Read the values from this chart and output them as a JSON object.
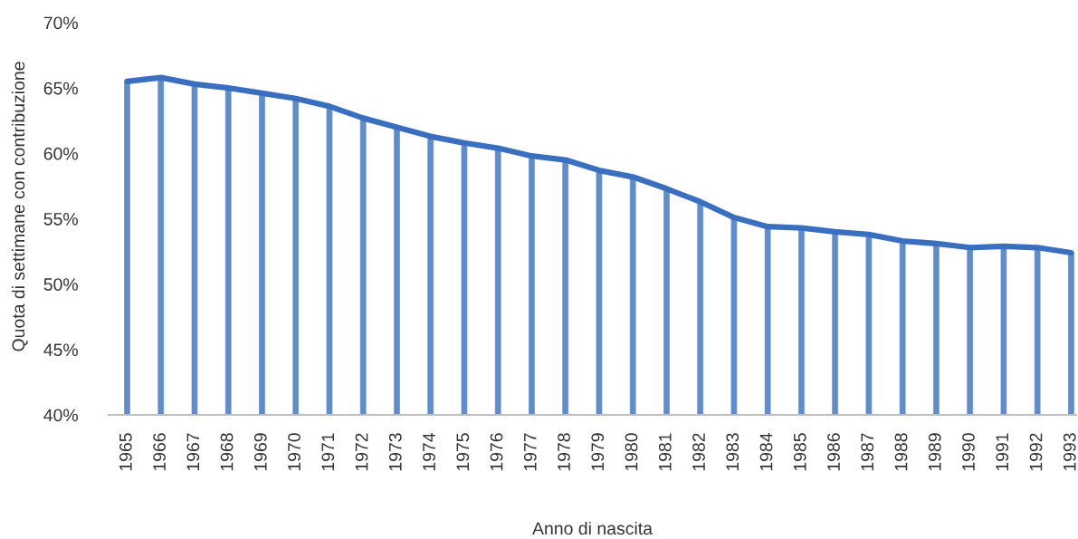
{
  "chart_data": {
    "type": "line",
    "xlabel": "Anno di nascita",
    "ylabel": "Quota di settimane con contribuzione",
    "categories": [
      "1965",
      "1966",
      "1967",
      "1968",
      "1969",
      "1970",
      "1971",
      "1972",
      "1973",
      "1974",
      "1975",
      "1976",
      "1977",
      "1978",
      "1979",
      "1980",
      "1981",
      "1982",
      "1983",
      "1984",
      "1985",
      "1986",
      "1987",
      "1988",
      "1989",
      "1990",
      "1991",
      "1992",
      "1993"
    ],
    "series": [
      {
        "type": "bar",
        "color": "#5f8ccb",
        "values": [
          65.5,
          65.8,
          65.3,
          65.0,
          64.6,
          64.2,
          63.6,
          62.7,
          62.0,
          61.3,
          60.8,
          60.4,
          59.8,
          59.5,
          58.7,
          58.2,
          57.3,
          56.3,
          55.1,
          54.4,
          54.3,
          54.0,
          53.8,
          53.3,
          53.1,
          52.8,
          52.9,
          52.8,
          52.4
        ]
      },
      {
        "color": "#3a6fc0",
        "values": [
          65.5,
          65.8,
          65.3,
          65.0,
          64.6,
          64.2,
          63.6,
          62.7,
          62.0,
          61.3,
          60.8,
          60.4,
          59.8,
          59.5,
          58.7,
          58.2,
          57.3,
          56.3,
          55.1,
          54.4,
          54.3,
          54.0,
          53.8,
          53.3,
          53.1,
          52.8,
          52.9,
          52.8,
          52.4
        ]
      }
    ],
    "ylim": [
      40,
      70
    ],
    "yticks": [
      {
        "value": 40,
        "label": "40%"
      },
      {
        "value": 45,
        "label": "45%"
      },
      {
        "value": 50,
        "label": "50%"
      },
      {
        "value": 55,
        "label": "55%"
      },
      {
        "value": 60,
        "label": "60%"
      },
      {
        "value": 65,
        "label": "65%"
      },
      {
        "value": 70,
        "label": "70%"
      }
    ]
  }
}
